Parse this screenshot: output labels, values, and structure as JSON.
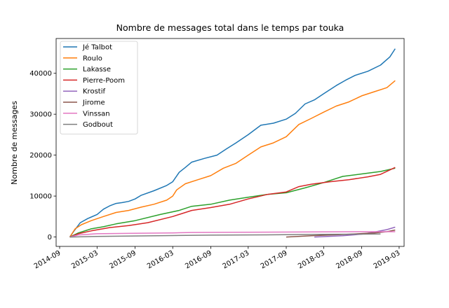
{
  "chart_data": {
    "type": "line",
    "title": "Nombre de messages total dans le temps par touka",
    "xlabel": "",
    "ylabel": "Nombre de messages",
    "xlim": [
      "2014-08-15",
      "2019-03-25"
    ],
    "ylim": [
      -2300,
      48500
    ],
    "x_ticks": [
      "2014-09",
      "2015-03",
      "2015-09",
      "2016-03",
      "2016-09",
      "2017-03",
      "2017-09",
      "2018-03",
      "2018-09",
      "2019-03"
    ],
    "y_ticks": [
      0,
      10000,
      20000,
      30000,
      40000
    ],
    "grid": false,
    "legend_position": "upper-left",
    "series": [
      {
        "name": "Jé Talbot",
        "color": "#1f77b4",
        "points": [
          [
            "2014-10-20",
            0
          ],
          [
            "2014-11-10",
            1500
          ],
          [
            "2014-12-10",
            3500
          ],
          [
            "2015-01-15",
            4500
          ],
          [
            "2015-03-01",
            5500
          ],
          [
            "2015-04-01",
            6800
          ],
          [
            "2015-05-01",
            7600
          ],
          [
            "2015-06-01",
            8200
          ],
          [
            "2015-07-01",
            8400
          ],
          [
            "2015-08-01",
            8700
          ],
          [
            "2015-09-01",
            9300
          ],
          [
            "2015-10-01",
            10200
          ],
          [
            "2015-12-01",
            11300
          ],
          [
            "2016-02-01",
            12600
          ],
          [
            "2016-03-01",
            13500
          ],
          [
            "2016-04-01",
            15800
          ],
          [
            "2016-05-01",
            17000
          ],
          [
            "2016-06-01",
            18300
          ],
          [
            "2016-08-01",
            19200
          ],
          [
            "2016-10-01",
            20000
          ],
          [
            "2016-11-15",
            21500
          ],
          [
            "2017-01-01",
            23000
          ],
          [
            "2017-03-01",
            25000
          ],
          [
            "2017-05-01",
            27300
          ],
          [
            "2017-07-01",
            27800
          ],
          [
            "2017-09-01",
            28800
          ],
          [
            "2017-10-15",
            30200
          ],
          [
            "2017-12-01",
            32500
          ],
          [
            "2018-01-15",
            33500
          ],
          [
            "2018-03-01",
            35000
          ],
          [
            "2018-05-01",
            37000
          ],
          [
            "2018-06-15",
            38300
          ],
          [
            "2018-08-01",
            39500
          ],
          [
            "2018-10-01",
            40500
          ],
          [
            "2018-12-01",
            42000
          ],
          [
            "2019-01-15",
            44000
          ],
          [
            "2019-02-10",
            46000
          ]
        ]
      },
      {
        "name": "Roulo",
        "color": "#ff7f0e",
        "points": [
          [
            "2014-10-20",
            0
          ],
          [
            "2014-11-15",
            2000
          ],
          [
            "2014-12-15",
            3000
          ],
          [
            "2015-02-01",
            4000
          ],
          [
            "2015-04-01",
            5000
          ],
          [
            "2015-06-01",
            6000
          ],
          [
            "2015-08-01",
            6500
          ],
          [
            "2015-10-01",
            7300
          ],
          [
            "2015-12-01",
            8000
          ],
          [
            "2016-02-01",
            9000
          ],
          [
            "2016-03-01",
            10000
          ],
          [
            "2016-03-20",
            11500
          ],
          [
            "2016-05-01",
            13000
          ],
          [
            "2016-07-01",
            14000
          ],
          [
            "2016-09-01",
            15000
          ],
          [
            "2016-11-01",
            16800
          ],
          [
            "2017-01-01",
            18000
          ],
          [
            "2017-03-01",
            20000
          ],
          [
            "2017-05-01",
            22000
          ],
          [
            "2017-07-01",
            23000
          ],
          [
            "2017-09-01",
            24500
          ],
          [
            "2017-11-01",
            27500
          ],
          [
            "2018-01-01",
            29000
          ],
          [
            "2018-03-01",
            30500
          ],
          [
            "2018-05-01",
            32000
          ],
          [
            "2018-07-01",
            33000
          ],
          [
            "2018-09-01",
            34500
          ],
          [
            "2018-11-01",
            35500
          ],
          [
            "2019-01-01",
            36500
          ],
          [
            "2019-02-10",
            38200
          ]
        ]
      },
      {
        "name": "Lakasse",
        "color": "#2ca02c",
        "points": [
          [
            "2014-10-20",
            0
          ],
          [
            "2014-12-01",
            1000
          ],
          [
            "2015-02-01",
            2000
          ],
          [
            "2015-04-01",
            2500
          ],
          [
            "2015-06-01",
            3200
          ],
          [
            "2015-09-01",
            4000
          ],
          [
            "2016-01-01",
            5500
          ],
          [
            "2016-04-01",
            6500
          ],
          [
            "2016-06-01",
            7500
          ],
          [
            "2016-09-01",
            8000
          ],
          [
            "2016-12-01",
            9000
          ],
          [
            "2017-03-01",
            9700
          ],
          [
            "2017-06-01",
            10400
          ],
          [
            "2017-09-01",
            10800
          ],
          [
            "2017-12-01",
            12000
          ],
          [
            "2018-03-01",
            13300
          ],
          [
            "2018-06-01",
            14800
          ],
          [
            "2018-09-01",
            15400
          ],
          [
            "2018-12-01",
            16000
          ],
          [
            "2019-02-10",
            16800
          ]
        ]
      },
      {
        "name": "Pierre-Poom",
        "color": "#d62728",
        "points": [
          [
            "2014-10-20",
            0
          ],
          [
            "2014-12-01",
            800
          ],
          [
            "2015-02-01",
            1500
          ],
          [
            "2015-05-01",
            2300
          ],
          [
            "2015-08-01",
            2800
          ],
          [
            "2015-11-01",
            3500
          ],
          [
            "2016-03-01",
            5000
          ],
          [
            "2016-06-01",
            6500
          ],
          [
            "2016-09-01",
            7200
          ],
          [
            "2016-12-01",
            8000
          ],
          [
            "2017-03-01",
            9300
          ],
          [
            "2017-06-01",
            10400
          ],
          [
            "2017-09-01",
            11000
          ],
          [
            "2017-11-01",
            12300
          ],
          [
            "2018-01-01",
            12900
          ],
          [
            "2018-04-01",
            13500
          ],
          [
            "2018-07-01",
            14000
          ],
          [
            "2018-10-01",
            14700
          ],
          [
            "2018-12-01",
            15300
          ],
          [
            "2019-02-10",
            17000
          ]
        ]
      },
      {
        "name": "Krostif",
        "color": "#9467bd",
        "points": [
          [
            "2018-01-15",
            0
          ],
          [
            "2018-06-01",
            300
          ],
          [
            "2018-09-01",
            700
          ],
          [
            "2018-11-01",
            1200
          ],
          [
            "2019-01-01",
            1800
          ],
          [
            "2019-02-10",
            2400
          ]
        ]
      },
      {
        "name": "Jirome",
        "color": "#8c564b",
        "points": [
          [
            "2017-09-01",
            0
          ],
          [
            "2018-01-01",
            300
          ],
          [
            "2018-06-01",
            600
          ],
          [
            "2018-11-01",
            1000
          ],
          [
            "2019-01-01",
            1300
          ],
          [
            "2019-02-10",
            1700
          ]
        ]
      },
      {
        "name": "Vinssan",
        "color": "#e377c2",
        "points": [
          [
            "2014-10-20",
            0
          ],
          [
            "2014-12-01",
            500
          ],
          [
            "2015-03-01",
            800
          ],
          [
            "2015-09-01",
            900
          ],
          [
            "2016-03-01",
            1000
          ],
          [
            "2016-06-01",
            1100
          ],
          [
            "2017-03-01",
            1150
          ],
          [
            "2017-09-01",
            1200
          ],
          [
            "2018-03-01",
            1250
          ],
          [
            "2018-09-01",
            1300
          ],
          [
            "2019-02-10",
            1300
          ]
        ]
      },
      {
        "name": "Godbout",
        "color": "#7f7f7f",
        "points": [
          [
            "2014-10-20",
            0
          ],
          [
            "2015-03-01",
            150
          ],
          [
            "2015-09-01",
            250
          ],
          [
            "2016-03-01",
            350
          ],
          [
            "2016-09-01",
            450
          ],
          [
            "2017-03-01",
            500
          ],
          [
            "2017-09-01",
            560
          ],
          [
            "2018-03-01",
            650
          ],
          [
            "2018-09-01",
            700
          ],
          [
            "2018-12-01",
            750
          ]
        ]
      }
    ]
  }
}
